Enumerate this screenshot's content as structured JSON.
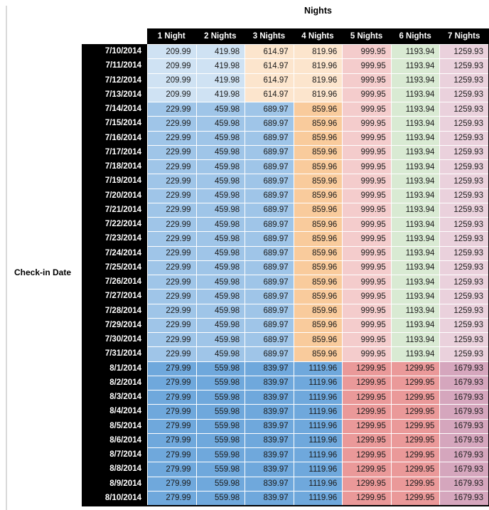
{
  "chart_data": {
    "type": "table",
    "title": "Nights",
    "row_label": "Check-in Date",
    "columns": [
      "1 Night",
      "2 Nights",
      "3 Nights",
      "4 Nights",
      "5 Nights",
      "6 Nights",
      "7 Nights"
    ],
    "cell_color_patterns": {
      "early_july": [
        "#cfe2f3",
        "#cfe2f3",
        "#fce5cd",
        "#fce5cd",
        "#f4cccc",
        "#d9ead3",
        "#ead1dc"
      ],
      "mid_july": [
        "#9fc5e8",
        "#9fc5e8",
        "#9fc5e8",
        "#f9cb9c",
        "#f4cccc",
        "#d9ead3",
        "#ead1dc"
      ],
      "august": [
        "#6fa8dc",
        "#6fa8dc",
        "#6fa8dc",
        "#6fa8dc",
        "#ea9999",
        "#ea9999",
        "#d5a6bd"
      ]
    },
    "rows": [
      {
        "date": "7/10/2014",
        "pattern": "early_july",
        "values": [
          209.99,
          419.98,
          614.97,
          819.96,
          999.95,
          1193.94,
          1259.93
        ]
      },
      {
        "date": "7/11/2014",
        "pattern": "early_july",
        "values": [
          209.99,
          419.98,
          614.97,
          819.96,
          999.95,
          1193.94,
          1259.93
        ]
      },
      {
        "date": "7/12/2014",
        "pattern": "early_july",
        "values": [
          209.99,
          419.98,
          614.97,
          819.96,
          999.95,
          1193.94,
          1259.93
        ]
      },
      {
        "date": "7/13/2014",
        "pattern": "early_july",
        "values": [
          209.99,
          419.98,
          614.97,
          819.96,
          999.95,
          1193.94,
          1259.93
        ]
      },
      {
        "date": "7/14/2014",
        "pattern": "mid_july",
        "values": [
          229.99,
          459.98,
          689.97,
          859.96,
          999.95,
          1193.94,
          1259.93
        ]
      },
      {
        "date": "7/15/2014",
        "pattern": "mid_july",
        "values": [
          229.99,
          459.98,
          689.97,
          859.96,
          999.95,
          1193.94,
          1259.93
        ]
      },
      {
        "date": "7/16/2014",
        "pattern": "mid_july",
        "values": [
          229.99,
          459.98,
          689.97,
          859.96,
          999.95,
          1193.94,
          1259.93
        ]
      },
      {
        "date": "7/17/2014",
        "pattern": "mid_july",
        "values": [
          229.99,
          459.98,
          689.97,
          859.96,
          999.95,
          1193.94,
          1259.93
        ]
      },
      {
        "date": "7/18/2014",
        "pattern": "mid_july",
        "values": [
          229.99,
          459.98,
          689.97,
          859.96,
          999.95,
          1193.94,
          1259.93
        ]
      },
      {
        "date": "7/19/2014",
        "pattern": "mid_july",
        "values": [
          229.99,
          459.98,
          689.97,
          859.96,
          999.95,
          1193.94,
          1259.93
        ]
      },
      {
        "date": "7/20/2014",
        "pattern": "mid_july",
        "values": [
          229.99,
          459.98,
          689.97,
          859.96,
          999.95,
          1193.94,
          1259.93
        ]
      },
      {
        "date": "7/21/2014",
        "pattern": "mid_july",
        "values": [
          229.99,
          459.98,
          689.97,
          859.96,
          999.95,
          1193.94,
          1259.93
        ]
      },
      {
        "date": "7/22/2014",
        "pattern": "mid_july",
        "values": [
          229.99,
          459.98,
          689.97,
          859.96,
          999.95,
          1193.94,
          1259.93
        ]
      },
      {
        "date": "7/23/2014",
        "pattern": "mid_july",
        "values": [
          229.99,
          459.98,
          689.97,
          859.96,
          999.95,
          1193.94,
          1259.93
        ]
      },
      {
        "date": "7/24/2014",
        "pattern": "mid_july",
        "values": [
          229.99,
          459.98,
          689.97,
          859.96,
          999.95,
          1193.94,
          1259.93
        ]
      },
      {
        "date": "7/25/2014",
        "pattern": "mid_july",
        "values": [
          229.99,
          459.98,
          689.97,
          859.96,
          999.95,
          1193.94,
          1259.93
        ]
      },
      {
        "date": "7/26/2014",
        "pattern": "mid_july",
        "values": [
          229.99,
          459.98,
          689.97,
          859.96,
          999.95,
          1193.94,
          1259.93
        ]
      },
      {
        "date": "7/27/2014",
        "pattern": "mid_july",
        "values": [
          229.99,
          459.98,
          689.97,
          859.96,
          999.95,
          1193.94,
          1259.93
        ]
      },
      {
        "date": "7/28/2014",
        "pattern": "mid_july",
        "values": [
          229.99,
          459.98,
          689.97,
          859.96,
          999.95,
          1193.94,
          1259.93
        ]
      },
      {
        "date": "7/29/2014",
        "pattern": "mid_july",
        "values": [
          229.99,
          459.98,
          689.97,
          859.96,
          999.95,
          1193.94,
          1259.93
        ]
      },
      {
        "date": "7/30/2014",
        "pattern": "mid_july",
        "values": [
          229.99,
          459.98,
          689.97,
          859.96,
          999.95,
          1193.94,
          1259.93
        ]
      },
      {
        "date": "7/31/2014",
        "pattern": "mid_july",
        "values": [
          229.99,
          459.98,
          689.97,
          859.96,
          999.95,
          1193.94,
          1259.93
        ]
      },
      {
        "date": "8/1/2014",
        "pattern": "august",
        "values": [
          279.99,
          559.98,
          839.97,
          1119.96,
          1299.95,
          1299.95,
          1679.93
        ]
      },
      {
        "date": "8/2/2014",
        "pattern": "august",
        "values": [
          279.99,
          559.98,
          839.97,
          1119.96,
          1299.95,
          1299.95,
          1679.93
        ]
      },
      {
        "date": "8/3/2014",
        "pattern": "august",
        "values": [
          279.99,
          559.98,
          839.97,
          1119.96,
          1299.95,
          1299.95,
          1679.93
        ]
      },
      {
        "date": "8/4/2014",
        "pattern": "august",
        "values": [
          279.99,
          559.98,
          839.97,
          1119.96,
          1299.95,
          1299.95,
          1679.93
        ]
      },
      {
        "date": "8/5/2014",
        "pattern": "august",
        "values": [
          279.99,
          559.98,
          839.97,
          1119.96,
          1299.95,
          1299.95,
          1679.93
        ]
      },
      {
        "date": "8/6/2014",
        "pattern": "august",
        "values": [
          279.99,
          559.98,
          839.97,
          1119.96,
          1299.95,
          1299.95,
          1679.93
        ]
      },
      {
        "date": "8/7/2014",
        "pattern": "august",
        "values": [
          279.99,
          559.98,
          839.97,
          1119.96,
          1299.95,
          1299.95,
          1679.93
        ]
      },
      {
        "date": "8/8/2014",
        "pattern": "august",
        "values": [
          279.99,
          559.98,
          839.97,
          1119.96,
          1299.95,
          1299.95,
          1679.93
        ]
      },
      {
        "date": "8/9/2014",
        "pattern": "august",
        "values": [
          279.99,
          559.98,
          839.97,
          1119.96,
          1299.95,
          1299.95,
          1679.93
        ]
      },
      {
        "date": "8/10/2014",
        "pattern": "august",
        "values": [
          279.99,
          559.98,
          839.97,
          1119.96,
          1299.95,
          1299.95,
          1679.93
        ]
      }
    ],
    "layout": {
      "header_bg": "#000000",
      "header_text_color": "#ffffff",
      "date_column_bg": "#000000",
      "date_text_color": "#ffffff",
      "gridline_color": "#ffffff",
      "left_margin_gridline_color": "#d9d9d9"
    }
  }
}
